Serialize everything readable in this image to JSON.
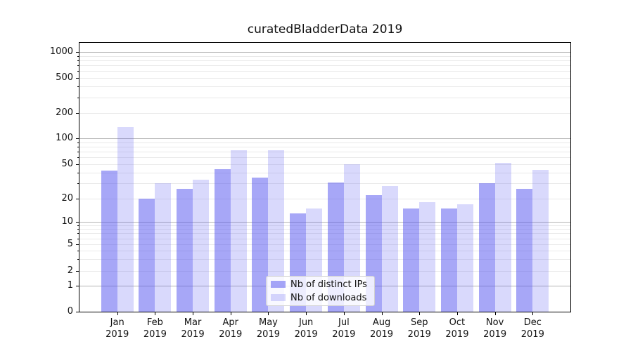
{
  "chart_data": {
    "type": "bar",
    "title": "curatedBladderData 2019",
    "categories": [
      "Jan 2019",
      "Feb 2019",
      "Mar 2019",
      "Apr 2019",
      "May 2019",
      "Jun 2019",
      "Jul 2019",
      "Aug 2019",
      "Sep 2019",
      "Oct 2019",
      "Nov 2019",
      "Dec 2019"
    ],
    "series": [
      {
        "name": "Nb of distinct IPs",
        "color": "rgba(80,80,240,0.5)",
        "values": [
          42,
          20,
          26,
          44,
          35,
          13,
          31,
          22,
          15,
          15,
          30,
          26
        ]
      },
      {
        "name": "Nb of downloads",
        "color": "rgba(80,80,240,0.22)",
        "values": [
          135,
          30,
          33,
          73,
          73,
          15,
          50,
          28,
          18,
          17,
          52,
          43
        ]
      }
    ],
    "xlabel": "",
    "ylabel": "",
    "yscale": "symlog",
    "ylim": [
      0,
      1300
    ],
    "yticks": [
      0,
      1,
      2,
      5,
      10,
      20,
      50,
      100,
      200,
      500,
      1000
    ],
    "grid": "on",
    "legend_position": "lower center inside plot",
    "style": {
      "background": "#ffffff",
      "bar_color_base": "#5050f0",
      "bar1_rendered": "#a7a7f7",
      "bar2_rendered": "#d8d8fa",
      "major_gridline": "#b4b4b4",
      "minor_gridline": "#e9e9e9",
      "spine": "#000000",
      "text": "#111111"
    }
  }
}
